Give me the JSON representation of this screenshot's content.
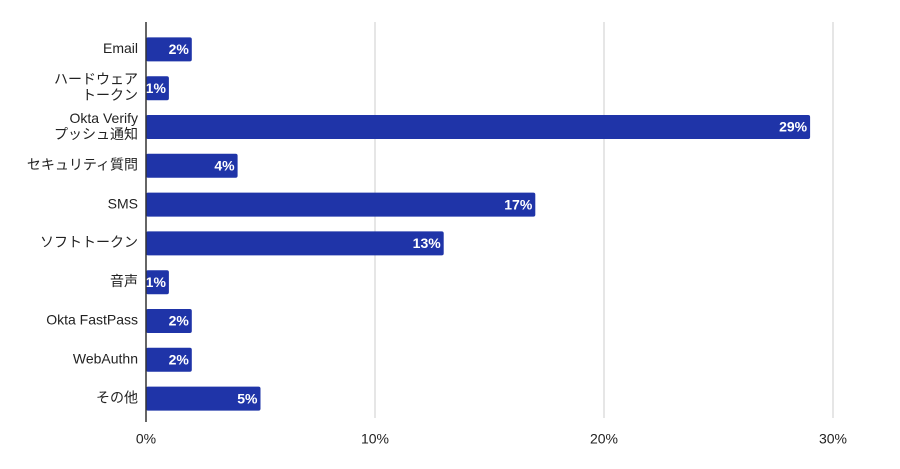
{
  "chart_data": {
    "type": "bar",
    "orientation": "horizontal",
    "categories": [
      "Email",
      "ハードウェア\nトークン",
      "Okta Verify\nプッシュ通知",
      "セキュリティ質問",
      "SMS",
      "ソフトトークン",
      "音声",
      "Okta FastPass",
      "WebAuthn",
      "その他"
    ],
    "values": [
      2,
      1,
      29,
      4,
      17,
      13,
      1,
      2,
      2,
      5
    ],
    "value_labels": [
      "2%",
      "1%",
      "29%",
      "4%",
      "17%",
      "13%",
      "1%",
      "2%",
      "2%",
      "5%"
    ],
    "color": "#1f34a8",
    "xlim": [
      0,
      30
    ],
    "xticks": [
      {
        "value": 0,
        "label": "0%"
      },
      {
        "value": 10,
        "label": "10%"
      },
      {
        "value": 20,
        "label": "20%"
      },
      {
        "value": 30,
        "label": "30%"
      }
    ],
    "grid": true
  }
}
